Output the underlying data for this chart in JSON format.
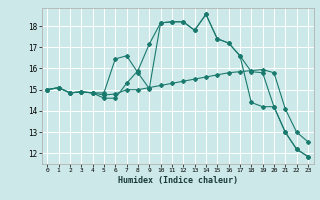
{
  "title": "",
  "xlabel": "Humidex (Indice chaleur)",
  "ylabel": "",
  "bg_color": "#cce8e8",
  "line_color": "#1a7a6e",
  "grid_color": "#ffffff",
  "xlim": [
    -0.5,
    23.5
  ],
  "ylim": [
    11.5,
    18.85
  ],
  "yticks": [
    12,
    13,
    14,
    15,
    16,
    17,
    18
  ],
  "xticks": [
    0,
    1,
    2,
    3,
    4,
    5,
    6,
    7,
    8,
    9,
    10,
    11,
    12,
    13,
    14,
    15,
    16,
    17,
    18,
    19,
    20,
    21,
    22,
    23
  ],
  "line1_x": [
    0,
    1,
    2,
    3,
    4,
    5,
    6,
    7,
    8,
    9,
    10,
    11,
    12,
    13,
    14,
    15,
    16,
    17,
    18,
    19,
    20,
    21,
    22,
    23
  ],
  "line1_y": [
    15.0,
    15.1,
    14.85,
    14.9,
    14.85,
    14.75,
    14.8,
    15.0,
    15.0,
    15.1,
    15.2,
    15.3,
    15.4,
    15.5,
    15.6,
    15.7,
    15.8,
    15.85,
    15.9,
    15.95,
    15.8,
    14.1,
    13.0,
    12.55
  ],
  "line2_x": [
    0,
    1,
    2,
    3,
    4,
    5,
    6,
    7,
    8,
    9,
    10,
    11,
    12,
    13,
    14,
    15,
    16,
    17,
    18,
    19,
    20,
    21,
    22,
    23
  ],
  "line2_y": [
    15.0,
    15.1,
    14.85,
    14.9,
    14.85,
    14.85,
    16.45,
    16.6,
    15.8,
    15.05,
    18.15,
    18.2,
    18.2,
    17.8,
    18.55,
    17.4,
    17.2,
    16.6,
    15.85,
    15.8,
    14.2,
    13.0,
    12.2,
    11.85
  ],
  "line3_x": [
    0,
    1,
    2,
    3,
    4,
    5,
    6,
    7,
    8,
    9,
    10,
    11,
    12,
    13,
    14,
    15,
    16,
    17,
    18,
    19,
    20,
    21,
    22,
    23
  ],
  "line3_y": [
    15.0,
    15.1,
    14.85,
    14.9,
    14.85,
    14.6,
    14.6,
    15.3,
    15.9,
    17.15,
    18.15,
    18.2,
    18.2,
    17.8,
    18.55,
    17.4,
    17.2,
    16.6,
    14.4,
    14.2,
    14.2,
    13.0,
    12.2,
    11.85
  ]
}
